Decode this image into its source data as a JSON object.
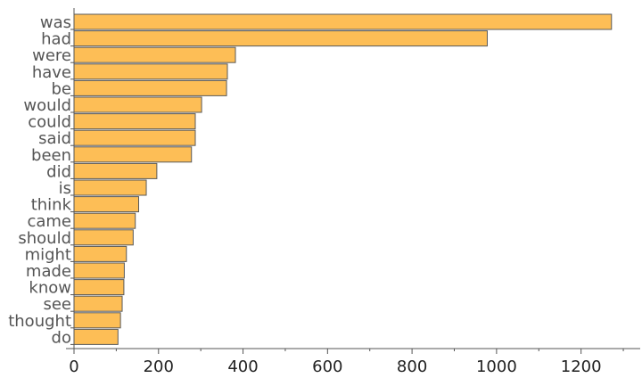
{
  "chart_data": {
    "type": "bar",
    "orientation": "horizontal",
    "categories": [
      "was",
      "had",
      "were",
      "have",
      "be",
      "would",
      "could",
      "said",
      "been",
      "did",
      "is",
      "think",
      "came",
      "should",
      "might",
      "made",
      "know",
      "see",
      "thought",
      "do"
    ],
    "values": [
      1272,
      978,
      382,
      363,
      361,
      302,
      287,
      287,
      278,
      196,
      171,
      153,
      145,
      140,
      124,
      119,
      118,
      114,
      110,
      104
    ],
    "xticks": [
      0,
      200,
      400,
      600,
      800,
      1000,
      1200
    ],
    "xlim": [
      0,
      1340
    ],
    "title": "",
    "xlabel": "",
    "ylabel": "",
    "bar_color": "#FDBE56",
    "bar_edge_color": "#5a5a5a",
    "grid": false
  }
}
